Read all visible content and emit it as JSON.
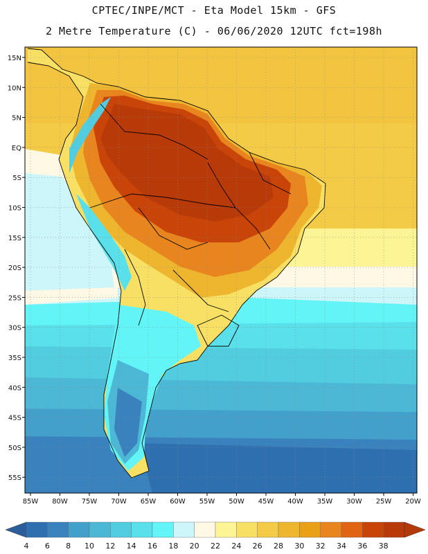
{
  "header": {
    "line1": "CPTEC/INPE/MCT -  Eta Model 15km - GFS",
    "line2": "2 Metre Temperature (C) - 06/06/2020 12UTC fct=198h"
  },
  "map": {
    "lat_ticks": [
      "15N",
      "10N",
      "5N",
      "EQ",
      "5S",
      "10S",
      "15S",
      "20S",
      "25S",
      "30S",
      "35S",
      "40S",
      "45S",
      "50S",
      "55S"
    ],
    "lon_ticks": [
      "85W",
      "80W",
      "75W",
      "70W",
      "65W",
      "60W",
      "55W",
      "50W",
      "45W",
      "40W",
      "35W",
      "30W",
      "25W",
      "20W"
    ]
  },
  "colorbar": {
    "labels": [
      "4",
      "6",
      "8",
      "10",
      "12",
      "14",
      "16",
      "18",
      "20",
      "22",
      "24",
      "26",
      "28",
      "30",
      "32",
      "34",
      "36",
      "38"
    ],
    "colors": [
      "#2e6fb0",
      "#3a82bd",
      "#43a0ca",
      "#4cb8d6",
      "#52cde0",
      "#5ae0ea",
      "#62f4f6",
      "#cdf6fb",
      "#fff8e4",
      "#fdf495",
      "#f8e065",
      "#f3cb47",
      "#eeb62e",
      "#eaa016",
      "#e8851e",
      "#e06414",
      "#c94408",
      "#b83a08"
    ],
    "low_color": "#2b5d9b",
    "high_color": "#b33a08"
  }
}
